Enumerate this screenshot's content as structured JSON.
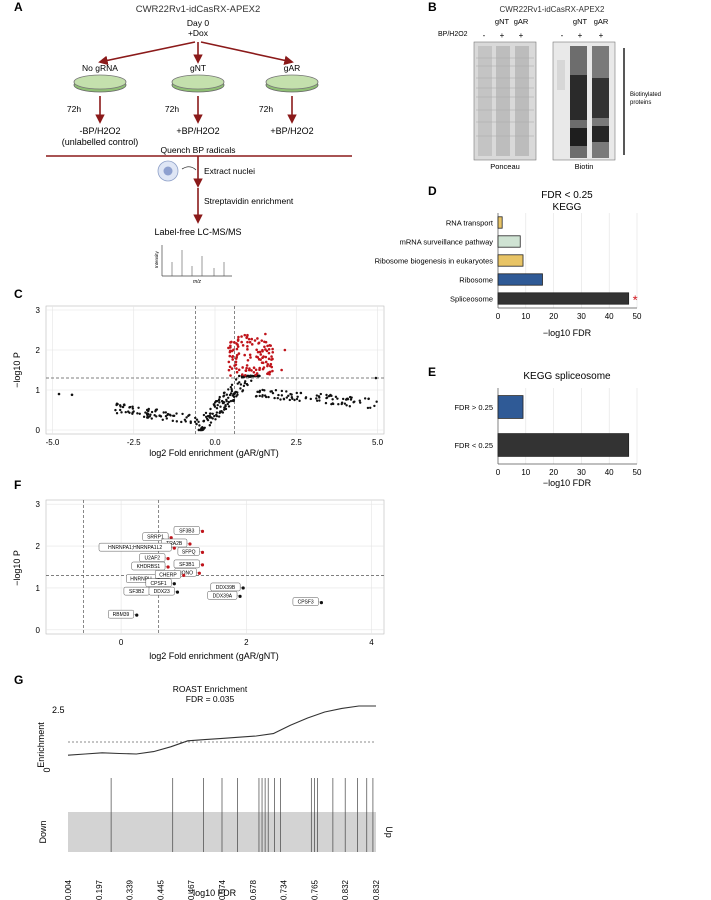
{
  "panels": {
    "A": {
      "letter": "A",
      "title": "CWR22Rv1-idCasRX-APEX2",
      "day0": "Day 0",
      "dox": "+Dox",
      "conditions": [
        {
          "name": "No gRNA",
          "time": "72h",
          "treat": "-BP/H2O2",
          "note": "(unlabelled control)"
        },
        {
          "name": "gNT",
          "time": "72h",
          "treat": "+BP/H2O2",
          "note": ""
        },
        {
          "name": "gAR",
          "time": "72h",
          "treat": "+BP/H2O2",
          "note": ""
        }
      ],
      "quench": "Quench BP radicals",
      "extract": "Extract nuclei",
      "streptavidin": "Streptavidin enrichment",
      "lcms": "Label-free LC-MS/MS",
      "ms_axis_y": "Intensity",
      "ms_axis_x": "m/z"
    },
    "B": {
      "letter": "B",
      "title": "CWR22Rv1-idCasRX-APEX2",
      "lanes": [
        "gNT",
        "gAR",
        "gNT",
        "gAR"
      ],
      "bp_label": "BP/H2O2",
      "signs": [
        "-",
        "+",
        "+",
        "-",
        "+",
        "+"
      ],
      "ponceau": "Ponceau",
      "biotin": "Biotin",
      "bracket_label_1": "Biotinylated",
      "bracket_label_2": "proteins"
    },
    "C": {
      "letter": "C",
      "xlabel": "log2 Fold enrichment (gAR/gNT)",
      "ylabel": "−log10 P",
      "xticks": [
        "-5.0",
        "-2.5",
        "0.0",
        "2.5",
        "5.0"
      ],
      "yticks": [
        "0",
        "1",
        "2",
        "3"
      ]
    },
    "D": {
      "letter": "D",
      "title1": "FDR < 0.25",
      "title2": "KEGG",
      "xlabel": "−log10 FDR",
      "xticks": [
        "0",
        "10",
        "20",
        "30",
        "40",
        "50"
      ],
      "star": "*"
    },
    "E": {
      "letter": "E",
      "title": "KEGG spliceosome",
      "xlabel": "−log10 FDR",
      "xticks": [
        "0",
        "10",
        "20",
        "30",
        "40",
        "50"
      ]
    },
    "F": {
      "letter": "F",
      "xlabel": "log2 Fold enrichment (gAR/gNT)",
      "ylabel": "−log10 P",
      "xticks": [
        "0",
        "2",
        "4"
      ],
      "yticks": [
        "0",
        "1",
        "2",
        "3"
      ]
    },
    "G": {
      "letter": "G",
      "title1": "ROAST Enrichment",
      "title2": "FDR = 0.035",
      "enrich_label": "Enrichment",
      "y_top": "2.5",
      "y_bottom": "0",
      "down": "Down",
      "up": "Up",
      "xlabel": "−log10 FDR",
      "xticks": [
        "0.004",
        "0.197",
        "0.339",
        "0.445",
        "0.467",
        "0.574",
        "0.678",
        "0.734",
        "0.765",
        "0.832",
        "0.832"
      ]
    }
  },
  "chart_data": [
    {
      "panel": "C",
      "type": "scatter",
      "xlabel": "log2 Fold enrichment (gAR/gNT)",
      "ylabel": "−log10 P",
      "xlim": [
        -5.2,
        5.2
      ],
      "ylim": [
        -0.1,
        3.1
      ],
      "threshold_y": 1.3,
      "threshold_x": [
        -0.6,
        0.6
      ],
      "highlight_color": "#c0141b",
      "points_color": "#111111",
      "grid": true
    },
    {
      "panel": "D",
      "type": "bar",
      "orientation": "horizontal",
      "categories": [
        "RNA transport",
        "mRNA surveillance pathway",
        "Ribosome biogenesis in eukaryotes",
        "Ribosome",
        "Spliceosome"
      ],
      "values": [
        1.5,
        8,
        9,
        16,
        47
      ],
      "colors": [
        "#e8c466",
        "#cfe3d3",
        "#e8c466",
        "#2f5a96",
        "#333333"
      ],
      "xlim": [
        0,
        50
      ],
      "xlabel": "−log10 FDR",
      "grid": true
    },
    {
      "panel": "E",
      "type": "bar",
      "orientation": "horizontal",
      "categories": [
        "FDR > 0.25",
        "FDR < 0.25"
      ],
      "values": [
        9,
        47
      ],
      "colors": [
        "#2f5a96",
        "#333333"
      ],
      "xlim": [
        0,
        50
      ],
      "xlabel": "−log10 FDR",
      "grid": true
    },
    {
      "panel": "F",
      "type": "scatter",
      "xlabel": "log2 Fold enrichment (gAR/gNT)",
      "ylabel": "−log10 P",
      "xlim": [
        -1.2,
        4.2
      ],
      "ylim": [
        -0.1,
        3.1
      ],
      "threshold_y": 1.3,
      "threshold_x": [
        -0.6,
        0.6
      ],
      "points": [
        {
          "label": "SF3B3",
          "x": 1.3,
          "y": 2.35,
          "red": true
        },
        {
          "label": "SRRP1",
          "x": 0.8,
          "y": 2.2,
          "red": true
        },
        {
          "label": "TRA2B",
          "x": 1.1,
          "y": 2.05,
          "red": true
        },
        {
          "label": "HNRNPA1;HNRNPA1L2",
          "x": 0.85,
          "y": 1.95,
          "red": true
        },
        {
          "label": "SFPQ",
          "x": 1.3,
          "y": 1.85,
          "red": true
        },
        {
          "label": "U2AF2",
          "x": 0.75,
          "y": 1.7,
          "red": true
        },
        {
          "label": "SF3B1",
          "x": 1.3,
          "y": 1.55,
          "red": true
        },
        {
          "label": "KHDRBS1",
          "x": 0.75,
          "y": 1.5,
          "red": true
        },
        {
          "label": "NONO",
          "x": 1.25,
          "y": 1.35,
          "red": true
        },
        {
          "label": "CHERP",
          "x": 1.0,
          "y": 1.3,
          "red": true
        },
        {
          "label": "HNRNPU",
          "x": 0.6,
          "y": 1.2,
          "red": false
        },
        {
          "label": "CPSF1",
          "x": 0.85,
          "y": 1.1,
          "red": false
        },
        {
          "label": "DDX39B",
          "x": 1.95,
          "y": 1.0,
          "red": false
        },
        {
          "label": "SF3B2",
          "x": 0.5,
          "y": 0.9,
          "red": false
        },
        {
          "label": "DDX23",
          "x": 0.9,
          "y": 0.9,
          "red": false
        },
        {
          "label": "DDX39A",
          "x": 1.9,
          "y": 0.8,
          "red": false
        },
        {
          "label": "CPSF3",
          "x": 3.2,
          "y": 0.65,
          "red": false
        },
        {
          "label": "RBM39",
          "x": 0.25,
          "y": 0.35,
          "red": false
        }
      ]
    },
    {
      "panel": "G",
      "type": "line",
      "title": "ROAST Enrichment",
      "subtitle": "FDR = 0.035",
      "ylim": [
        0,
        2.5
      ],
      "baseline": 1.0,
      "y_curve": [
        0.45,
        0.5,
        0.55,
        0.52,
        0.5,
        0.6,
        0.8,
        1.05,
        1.1,
        1.15,
        1.2,
        1.25,
        1.35,
        1.7,
        2.0,
        2.25,
        2.4,
        2.5,
        2.5
      ],
      "barcode_fractions": [
        0.14,
        0.34,
        0.44,
        0.5,
        0.55,
        0.62,
        0.63,
        0.64,
        0.65,
        0.67,
        0.69,
        0.79,
        0.8,
        0.81,
        0.86,
        0.9,
        0.94,
        0.97,
        0.99
      ]
    }
  ]
}
